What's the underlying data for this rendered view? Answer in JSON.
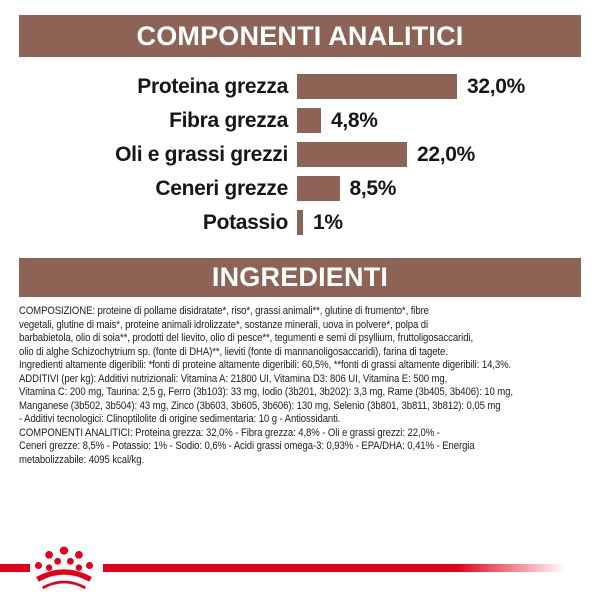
{
  "analytics": {
    "title": "COMPONENTI ANALITICI"
  },
  "chart_data": {
    "type": "bar",
    "orientation": "horizontal",
    "title": "COMPONENTI ANALITICI",
    "categories": [
      "Proteina grezza",
      "Fibra grezza",
      "Oli e grassi grezzi",
      "Ceneri grezze",
      "Potassio"
    ],
    "values": [
      32.0,
      4.8,
      22.0,
      8.5,
      1.0
    ],
    "value_labels": [
      "32,0%",
      "4,8%",
      "22,0%",
      "8,5%",
      "1%"
    ],
    "unit": "%",
    "xlim": [
      0,
      32
    ],
    "grid": false,
    "legend": false,
    "bar_color": "#8d6355"
  },
  "ingredients": {
    "title": "INGREDIENTI",
    "lines": [
      "COMPOSIZIONE: proteine di pollame disidratate*, riso*, grassi animali**, glutine di frumento*, fibre",
      "vegetali, glutine di mais*, proteine animali idrolizzate*, sostanze minerali, uova in polvere*, polpa di",
      "barbabietola, olio di soia**, prodotti del lievito, olio di pesce**, tegumenti e semi di psyllium, fruttoligosaccaridi,",
      "olio di alghe Schizochytrium sp. (fonte di DHA)**, lieviti (fonte di mannanoligosaccaridi), farina di tagete.",
      "Ingredienti altamente digeribili: *fonti di proteine altamente digeribili: 60,5%, **fonti di grassi altamente digeribili: 14,3%.",
      "ADDITIVI (per kg): Additivi nutrizionali: Vitamina A: 21800 UI, Vitamina D3: 806 UI, Vitamina E: 500 mg,",
      "Vitamina C: 200 mg, Taurina: 2,5 g, Ferro (3b103): 33 mg, Iodio (3b201, 3b202): 3,3 mg, Rame (3b405, 3b406): 10 mg,",
      "Manganese (3b502, 3b504): 43 mg, Zinco (3b603, 3b605, 3b606): 130 mg, Selenio (3b801, 3b811, 3b812): 0,05 mg",
      "- Additivi tecnologici: Clinoptilolite di origine sedimentaria: 10 g - Antiossidanti.",
      "COMPONENTI ANALITICI: Proteina grezza: 32,0% - Fibra grezza: 4,8% - Oli e grassi grezzi: 22,0% -",
      "Ceneri grezze: 8,5% - Potassio: 1% - Sodio: 0,6% - Acidi grassi omega-3: 0,93% - EPA/DHA: 0,41% - Energia",
      "metabolizzabile: 4095 kcal/kg."
    ]
  },
  "footer": {
    "logo": "royal-canin-crown",
    "brand_color": "#e2001a"
  },
  "colors": {
    "section_header_bg": "#8c6355",
    "section_header_text": "#ffffff",
    "bar": "#8d6355",
    "body_text": "#1d1d1b",
    "background": "#ffffff"
  }
}
